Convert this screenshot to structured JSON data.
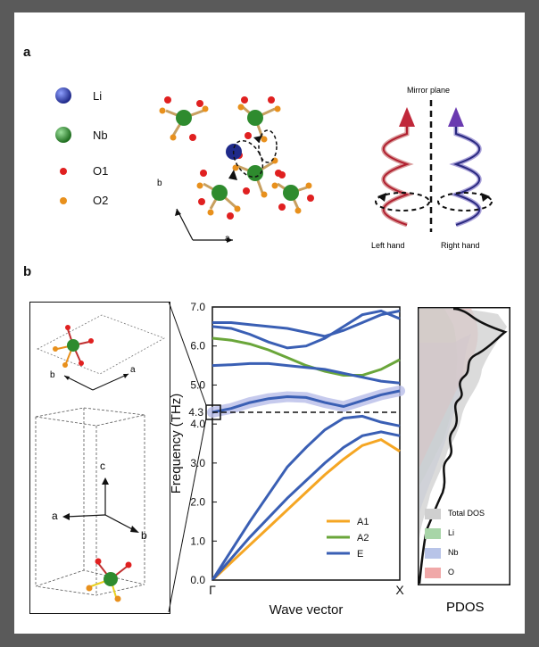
{
  "panel_a": {
    "label": "a",
    "legend": [
      {
        "name": "Li",
        "color": "#1f2a8a"
      },
      {
        "name": "Nb",
        "color": "#2e8b2e"
      },
      {
        "name": "O1",
        "color": "#e02020"
      },
      {
        "name": "O2",
        "color": "#e8901c"
      }
    ],
    "axis_b": "b",
    "axis_a": "a",
    "mirror_plane": "Mirror plane",
    "left_hand": "Left hand",
    "right_hand": "Right hand"
  },
  "panel_b": {
    "label": "b",
    "inset_axes": {
      "top_b": "b",
      "top_a": "a",
      "c": "c",
      "a": "a",
      "b": "b"
    },
    "chart_data": {
      "type": "line",
      "xlabel": "Wave vector",
      "ylabel": "Frequency (THz)",
      "x_ticks": [
        "Γ",
        "X"
      ],
      "ylim": [
        0.0,
        7.0
      ],
      "y_ticks": [
        "0.0",
        "1.0",
        "2.0",
        "3.0",
        "4.0",
        "5.0",
        "6.0",
        "7.0"
      ],
      "highlight_label": "4.3",
      "highlight_value": 4.3,
      "x": [
        0,
        0.1,
        0.2,
        0.3,
        0.4,
        0.5,
        0.6,
        0.7,
        0.8,
        0.9,
        1.0
      ],
      "series": [
        {
          "name": "A1",
          "color": "#f5a623",
          "bands": [
            [
              0.0,
              0.45,
              0.9,
              1.35,
              1.8,
              2.25,
              2.7,
              3.1,
              3.45,
              3.6,
              3.3
            ]
          ]
        },
        {
          "name": "A2",
          "color": "#6aa63a",
          "bands": [
            [
              6.2,
              6.15,
              6.05,
              5.9,
              5.7,
              5.5,
              5.35,
              5.25,
              5.25,
              5.4,
              5.65
            ]
          ]
        },
        {
          "name": "E",
          "color": "#3a5fb4",
          "bands": [
            [
              0.0,
              0.55,
              1.1,
              1.6,
              2.1,
              2.55,
              3.0,
              3.4,
              3.7,
              3.8,
              3.7
            ],
            [
              0.0,
              0.75,
              1.5,
              2.2,
              2.9,
              3.4,
              3.85,
              4.15,
              4.2,
              4.05,
              3.95
            ],
            [
              4.3,
              4.4,
              4.55,
              4.65,
              4.7,
              4.68,
              4.55,
              4.45,
              4.6,
              4.75,
              4.85
            ],
            [
              5.5,
              5.52,
              5.55,
              5.55,
              5.5,
              5.45,
              5.4,
              5.3,
              5.2,
              5.1,
              5.05
            ],
            [
              6.5,
              6.45,
              6.3,
              6.1,
              5.95,
              6.0,
              6.2,
              6.5,
              6.8,
              6.9,
              6.7
            ],
            [
              6.6,
              6.6,
              6.55,
              6.5,
              6.45,
              6.35,
              6.25,
              6.4,
              6.6,
              6.8,
              6.9
            ]
          ]
        }
      ],
      "legend_position": "bottom-right"
    },
    "pdos": {
      "xlabel": "PDOS",
      "legend": [
        {
          "name": "Total DOS",
          "color": "#cfcfcf"
        },
        {
          "name": "Li",
          "color": "#a8d5a8"
        },
        {
          "name": "Nb",
          "color": "#b8c4e8"
        },
        {
          "name": "O",
          "color": "#f0a8a8"
        }
      ]
    }
  }
}
